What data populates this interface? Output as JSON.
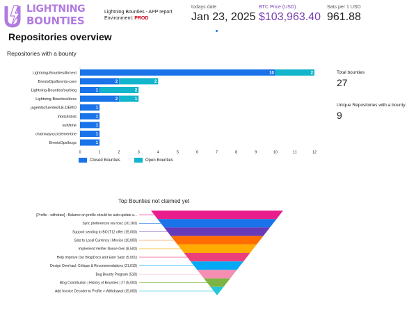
{
  "header": {
    "logo_line1": "LIGHTNING",
    "logo_line2": "BOUNTIES",
    "report_title": "Lightning Bounties - APP report",
    "environment_label": "Environment:",
    "environment_value": "PROD"
  },
  "kpis": [
    {
      "label": "todays date",
      "value": "Jan 23, 2025"
    },
    {
      "label": "BTC Price (USD)",
      "value": "$103,963.40"
    },
    {
      "label": "Sats per 1 USD",
      "value": "961.88"
    }
  ],
  "section_title": "Repositories overview",
  "bar_subtitle": "Repositories with a bounty",
  "scorecards": [
    {
      "label": "Total bounties",
      "value": "27"
    },
    {
      "label": "Unique Repositories with a bounty",
      "value": "9"
    }
  ],
  "colors": {
    "closed": "#1a73e8",
    "open": "#12b5cb",
    "logo": "#b17be0",
    "btc": "#7b3fb3",
    "prod": "#d0021b"
  },
  "chart_data": [
    {
      "type": "bar",
      "orientation": "horizontal",
      "stacked": true,
      "categories": [
        "Lightning-Bounties/lbmext",
        "BrentsOps/brents-core",
        "Lightning-Bounties/ourblog",
        "Lightning-Bounties/docs",
        "jagembofuentes/LB-DEMO",
        "lnbits/lnbits",
        "sutt/lime",
        "chainwayxyz/clementine",
        "BrentsOps/bugs"
      ],
      "series": [
        {
          "name": "Closed Bounties",
          "values": [
            10,
            2,
            1,
            2,
            1,
            1,
            1,
            1,
            1
          ]
        },
        {
          "name": "Open Bounties",
          "values": [
            2,
            2,
            2,
            1,
            0,
            0,
            0,
            0,
            0
          ]
        }
      ],
      "x_ticks": [
        0,
        1,
        2,
        3,
        4,
        5,
        6,
        7,
        8,
        9,
        10,
        11,
        12
      ],
      "xlim": [
        0,
        12
      ],
      "grid": false,
      "legend": "bottom-left"
    },
    {
      "type": "funnel",
      "title": "Top Bounties not claimed yet",
      "categories": [
        "[Profile - withdraw] - Balance on profile should be auto update a...",
        "Sync preferences via nosc (20,160)",
        "Support sending to BOLT12 offer (15,000)",
        "Sats to Local Currency | Mexico (10,000)",
        "Implement Verifier Nonce Gen (8,500)",
        "Help Improve Our Blog/Docs and Earn Sats! (5,001)",
        "Design Overhaul: Critique & Recommendations (21,010)",
        "Bug Bounty Program (510)",
        "Blog Contribution | History of Bounties | #7 (5,000)",
        "Add Invoice Decoder to Profile > Withdrawal (15,000)"
      ],
      "colors": [
        "#e91e8c",
        "#1a73e8",
        "#673ab7",
        "#ff6d00",
        "#ffab00",
        "#ec407a",
        "#03a9f4",
        "#f48fb1",
        "#7cb342",
        "#26c6da"
      ]
    }
  ]
}
